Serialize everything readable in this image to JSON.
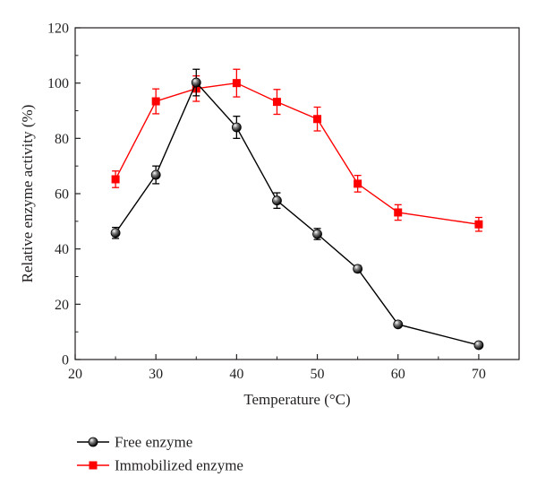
{
  "chart_data": {
    "type": "line",
    "xlabel": "Temperature (°C)",
    "ylabel": "Relative enzyme activity (%)",
    "xlim": [
      20,
      75
    ],
    "ylim": [
      0,
      120
    ],
    "x_ticks": [
      "20",
      "30",
      "40",
      "50",
      "60",
      "70"
    ],
    "y_ticks": [
      "0",
      "20",
      "40",
      "60",
      "80",
      "100",
      "120"
    ],
    "legend_position": "bottom-left, below plot",
    "series": [
      {
        "name": "Free enzyme",
        "color": "#000000",
        "marker": "sphere",
        "x": [
          25,
          30,
          35,
          40,
          45,
          50,
          55,
          60,
          70
        ],
        "y": [
          45.8,
          66.8,
          100.2,
          84.0,
          57.5,
          45.4,
          32.8,
          12.7,
          5.2
        ],
        "err": [
          2.0,
          3.2,
          4.8,
          4.0,
          2.8,
          2.0,
          1.2,
          0.8,
          0.6
        ]
      },
      {
        "name": "Immobilized enzyme",
        "color": "#ff0000",
        "marker": "square",
        "x": [
          25,
          30,
          35,
          40,
          45,
          50,
          55,
          60,
          70
        ],
        "y": [
          65.2,
          93.4,
          98.0,
          100.0,
          93.2,
          87.0,
          63.6,
          53.2,
          48.9
        ],
        "err": [
          3.0,
          4.5,
          4.6,
          5.0,
          4.5,
          4.3,
          3.0,
          2.8,
          2.5
        ]
      }
    ]
  }
}
